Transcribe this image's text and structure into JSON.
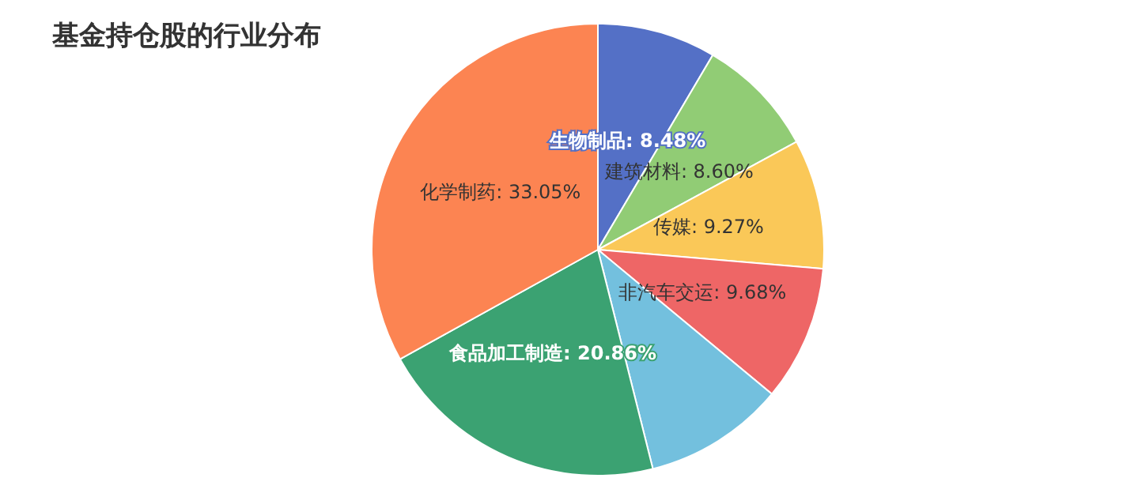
{
  "chart_data": {
    "type": "pie",
    "title": "基金持仓股的行业分布",
    "categories": [
      "生物制品",
      "建筑材料",
      "传媒",
      "非汽车交运",
      null,
      "食品加工制造",
      "化学制药"
    ],
    "values": [
      8.48,
      8.6,
      9.27,
      9.68,
      10.06,
      20.86,
      33.05
    ],
    "colors": [
      "#5470c6",
      "#91cc75",
      "#fac858",
      "#ee6666",
      "#73c0de",
      "#3ba272",
      "#fc8452"
    ],
    "value_labels": [
      "8.48%",
      "8.60%",
      "9.27%",
      "9.68%",
      null,
      "20.86%",
      "33.05%"
    ],
    "legend": false
  }
}
